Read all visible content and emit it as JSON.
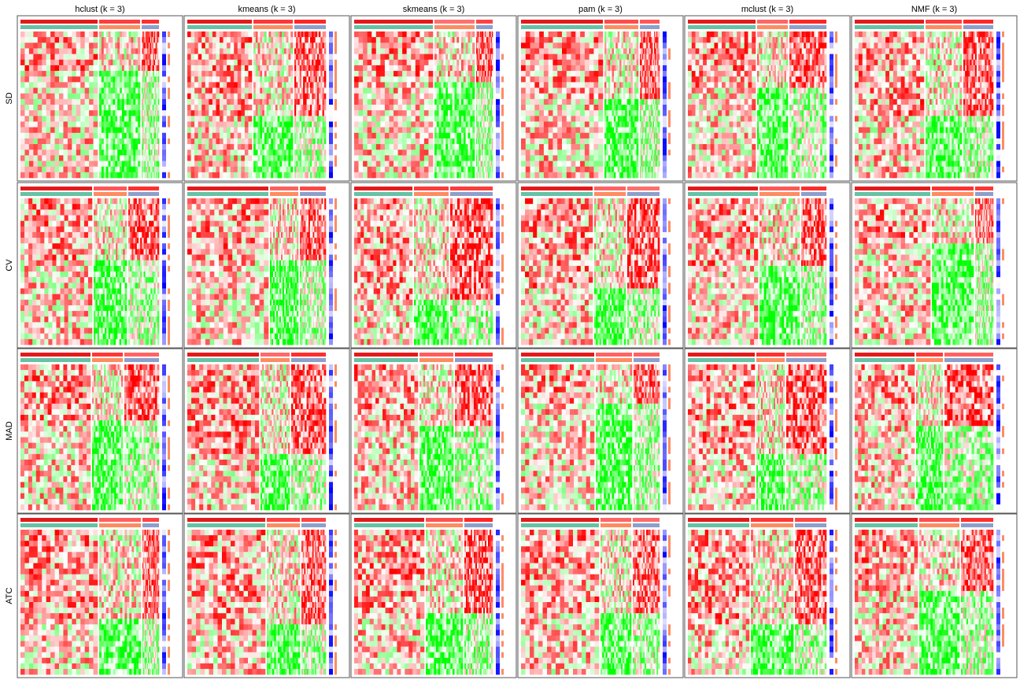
{
  "chart_data": {
    "type": "heatmap",
    "title": "",
    "column_titles": [
      "hclust (k = 3)",
      "kmeans (k = 3)",
      "skmeans (k = 3)",
      "pam (k = 3)",
      "mclust (k = 3)",
      "NMF (k = 3)"
    ],
    "row_titles": [
      "SD",
      "CV",
      "MAD",
      "ATC"
    ],
    "panel_count": 24,
    "colors": {
      "high": "#ff0000",
      "mid": "#ffffff",
      "low": "#00ff00",
      "class_colors": [
        "#66c2a5",
        "#fc8d62",
        "#8da0cb"
      ],
      "silhouette": "#e31a1c",
      "annotation_blue": "#0000ff",
      "frame": "#555555"
    }
  }
}
